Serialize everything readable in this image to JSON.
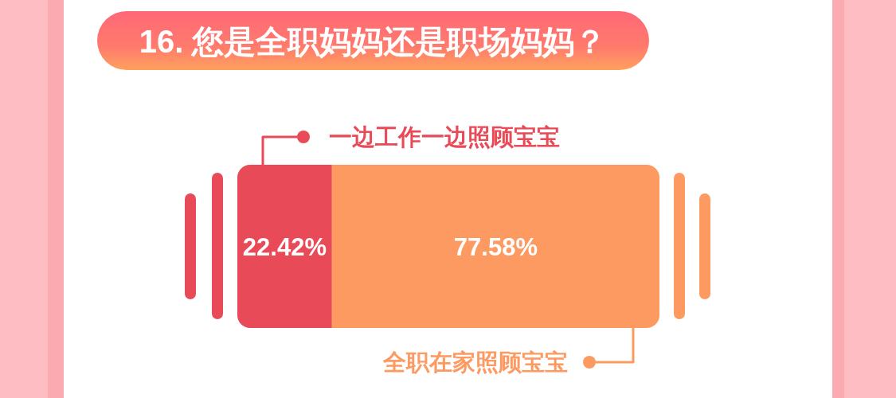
{
  "chart_data": {
    "type": "bar",
    "orientation": "horizontal",
    "stacked": true,
    "title": "16. 您是全职妈妈还是职场妈妈？",
    "categories": [
      null
    ],
    "series": [
      {
        "name": "一边工作一边照顾宝宝",
        "color": "#e94a57",
        "values": [
          22.42
        ],
        "value_labels": [
          "22.42%"
        ]
      },
      {
        "name": "全职在家照顾宝宝",
        "color": "#fc9a61",
        "values": [
          77.58
        ],
        "value_labels": [
          "77.58%"
        ]
      }
    ],
    "xlim": [
      0,
      100
    ],
    "tick_labels": false
  }
}
